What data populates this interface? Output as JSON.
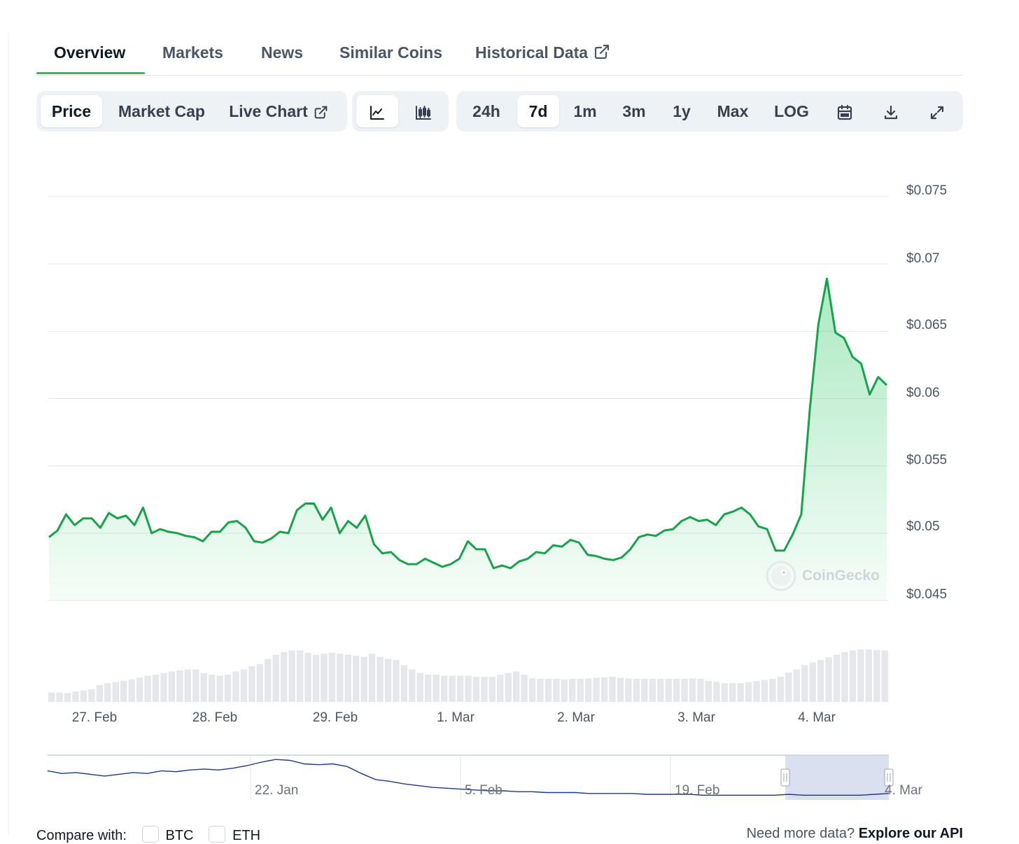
{
  "tabs": [
    {
      "label": "Overview"
    },
    {
      "label": "Markets"
    },
    {
      "label": "News"
    },
    {
      "label": "Similar Coins"
    },
    {
      "label": "Historical Data"
    }
  ],
  "toolbar": {
    "data_type": [
      "Price",
      "Market Cap",
      "Live Chart"
    ],
    "selected_data_type": "Price",
    "chart_styles": [
      "line-chart-icon",
      "candlestick-chart-icon"
    ],
    "selected_chart_style": "line-chart-icon",
    "ranges": [
      "24h",
      "7d",
      "1m",
      "3m",
      "1y",
      "Max",
      "LOG"
    ],
    "selected_range": "7d",
    "tools": [
      "calendar-icon",
      "download-icon",
      "fullscreen-icon"
    ]
  },
  "watermark": "CoinGecko",
  "colors": {
    "line": "#16a34a",
    "accent": "#22c55e",
    "volume": "#e5e7eb",
    "navigator_line": "#1e3a8a",
    "navigator_selection": "#c7d0ea"
  },
  "chart_data": {
    "type": "area",
    "title": "",
    "ylabel": "",
    "xlabel": "",
    "ylim": [
      0.045,
      0.075
    ],
    "y_ticks": [
      "$0.075",
      "$0.07",
      "$0.065",
      "$0.06",
      "$0.055",
      "$0.05",
      "$0.045"
    ],
    "y_tick_values": [
      0.075,
      0.07,
      0.065,
      0.06,
      0.055,
      0.05,
      0.045
    ],
    "x_ticks": [
      "27. Feb",
      "28. Feb",
      "29. Feb",
      "1. Mar",
      "2. Mar",
      "3. Mar",
      "4. Mar"
    ],
    "x_start": 26.62,
    "x_end": 33.62,
    "x_tick_positions": [
      27.0,
      28.0,
      29.0,
      30.0,
      31.0,
      32.0,
      33.0
    ],
    "series": [
      {
        "values": [
          0.0497,
          0.0502,
          0.0514,
          0.0506,
          0.0511,
          0.0511,
          0.0504,
          0.0515,
          0.0511,
          0.0513,
          0.0506,
          0.0519,
          0.05,
          0.0503,
          0.0501,
          0.05,
          0.0498,
          0.0497,
          0.0494,
          0.0501,
          0.0501,
          0.0508,
          0.0509,
          0.0504,
          0.0494,
          0.0493,
          0.0496,
          0.0501,
          0.05,
          0.0517,
          0.0522,
          0.0522,
          0.051,
          0.0519,
          0.05,
          0.0509,
          0.0504,
          0.0513,
          0.0492,
          0.0485,
          0.0486,
          0.048,
          0.0477,
          0.0477,
          0.0481,
          0.0478,
          0.0475,
          0.0477,
          0.0481,
          0.0494,
          0.0488,
          0.0488,
          0.0474,
          0.0476,
          0.0474,
          0.0479,
          0.0481,
          0.0486,
          0.0485,
          0.0491,
          0.049,
          0.0495,
          0.0493,
          0.0484,
          0.0483,
          0.0481,
          0.048,
          0.0482,
          0.0488,
          0.0497,
          0.0499,
          0.0498,
          0.0502,
          0.0503,
          0.0509,
          0.0512,
          0.0509,
          0.051,
          0.0506,
          0.0514,
          0.0516,
          0.0519,
          0.0514,
          0.0505,
          0.0503,
          0.0487,
          0.0487,
          0.0499,
          0.0514,
          0.0592,
          0.0655,
          0.0689,
          0.0649,
          0.0645,
          0.0631,
          0.0626,
          0.0603,
          0.0616,
          0.061
        ],
        "note_style": "line with green gradient fill"
      }
    ],
    "volume_relative": [
      0.18,
      0.18,
      0.17,
      0.2,
      0.22,
      0.24,
      0.32,
      0.36,
      0.38,
      0.4,
      0.43,
      0.46,
      0.5,
      0.52,
      0.55,
      0.58,
      0.6,
      0.62,
      0.62,
      0.55,
      0.52,
      0.5,
      0.52,
      0.58,
      0.62,
      0.68,
      0.72,
      0.82,
      0.9,
      0.95,
      0.98,
      0.98,
      0.94,
      0.9,
      0.92,
      0.94,
      0.92,
      0.9,
      0.88,
      0.86,
      0.92,
      0.86,
      0.82,
      0.8,
      0.7,
      0.62,
      0.55,
      0.52,
      0.52,
      0.5,
      0.5,
      0.5,
      0.5,
      0.48,
      0.48,
      0.48,
      0.52,
      0.55,
      0.58,
      0.52,
      0.45,
      0.44,
      0.44,
      0.44,
      0.43,
      0.44,
      0.44,
      0.45,
      0.46,
      0.47,
      0.48,
      0.46,
      0.45,
      0.44,
      0.44,
      0.44,
      0.44,
      0.44,
      0.44,
      0.44,
      0.45,
      0.44,
      0.4,
      0.38,
      0.36,
      0.36,
      0.36,
      0.38,
      0.4,
      0.42,
      0.44,
      0.48,
      0.56,
      0.62,
      0.7,
      0.75,
      0.8,
      0.85,
      0.9,
      0.95,
      0.98,
      1.0,
      1.0,
      0.99,
      0.98
    ],
    "navigator": {
      "x_ticks": [
        "22. Jan",
        "5. Feb",
        "19. Feb",
        "4. Mar"
      ],
      "values": [
        0.116,
        0.113,
        0.114,
        0.112,
        0.11,
        0.112,
        0.114,
        0.113,
        0.116,
        0.115,
        0.117,
        0.118,
        0.117,
        0.119,
        0.122,
        0.126,
        0.129,
        0.128,
        0.124,
        0.123,
        0.124,
        0.121,
        0.113,
        0.106,
        0.104,
        0.101,
        0.099,
        0.097,
        0.096,
        0.095,
        0.094,
        0.093,
        0.093,
        0.092,
        0.092,
        0.091,
        0.091,
        0.091,
        0.09,
        0.09,
        0.09,
        0.09,
        0.089,
        0.089,
        0.089,
        0.089,
        0.088,
        0.088,
        0.088,
        0.088,
        0.088,
        0.088,
        0.089,
        0.088,
        0.088,
        0.088,
        0.088,
        0.088,
        0.089,
        0.09
      ]
    }
  },
  "footer": {
    "compare_label": "Compare with:",
    "compare_options": [
      "BTC",
      "ETH"
    ],
    "api_text": "Need more data?",
    "api_link": "Explore our API"
  }
}
